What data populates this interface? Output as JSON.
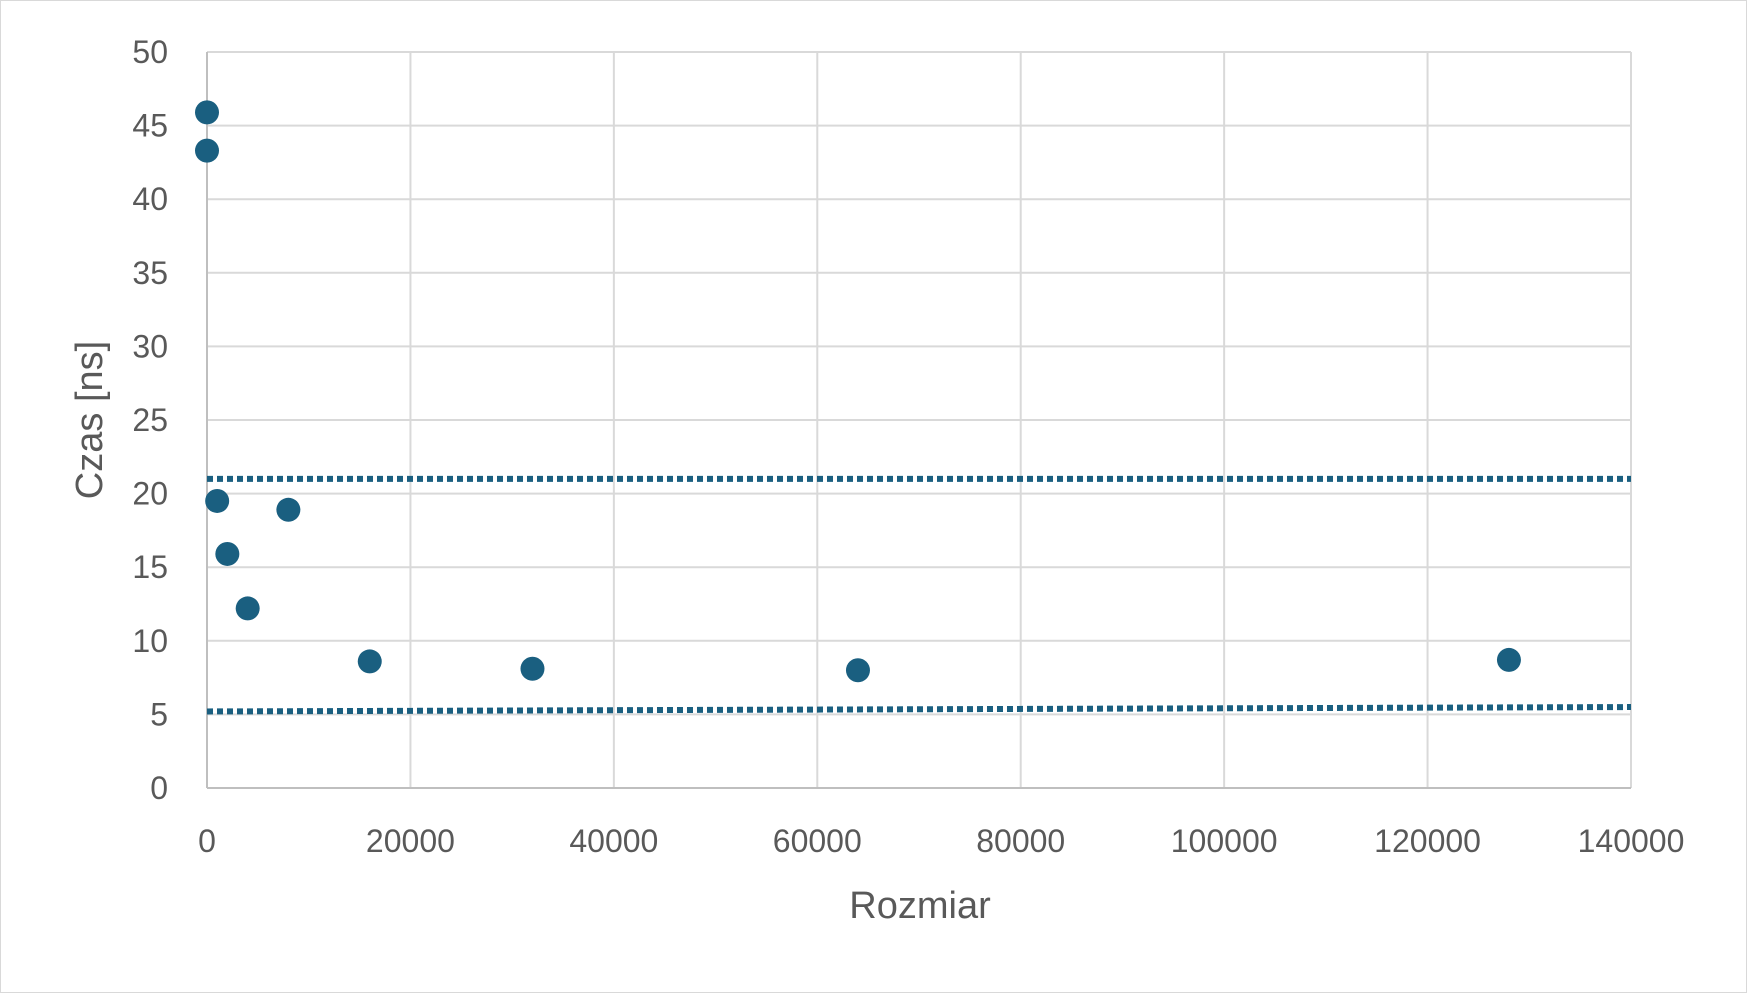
{
  "chart_data": {
    "type": "scatter",
    "title": "",
    "xlabel": "Rozmiar",
    "ylabel": "Czas [ns]",
    "xlim": [
      0,
      140000
    ],
    "ylim": [
      0,
      50
    ],
    "xticks": [
      0,
      20000,
      40000,
      60000,
      80000,
      100000,
      120000,
      140000
    ],
    "yticks": [
      0,
      5,
      10,
      15,
      20,
      25,
      30,
      35,
      40,
      45,
      50
    ],
    "grid": true,
    "legend": "none",
    "marker_color": "#1a5f80",
    "gridline_color": "#d9d9d9",
    "series": [
      {
        "points": [
          {
            "x": 0,
            "y": 45.9
          },
          {
            "x": 0,
            "y": 43.3
          },
          {
            "x": 1000,
            "y": 19.5
          },
          {
            "x": 2000,
            "y": 15.9
          },
          {
            "x": 4000,
            "y": 12.2
          },
          {
            "x": 8000,
            "y": 18.9
          },
          {
            "x": 16000,
            "y": 8.6
          },
          {
            "x": 32000,
            "y": 8.1
          },
          {
            "x": 64000,
            "y": 8.0
          },
          {
            "x": 128000,
            "y": 8.7
          }
        ]
      }
    ],
    "reference_lines": [
      {
        "x": [
          0,
          140000
        ],
        "y": [
          21.0,
          21.0
        ],
        "style": "dotted"
      },
      {
        "x": [
          0,
          140000
        ],
        "y": [
          5.2,
          5.5
        ],
        "style": "dotted"
      }
    ]
  }
}
